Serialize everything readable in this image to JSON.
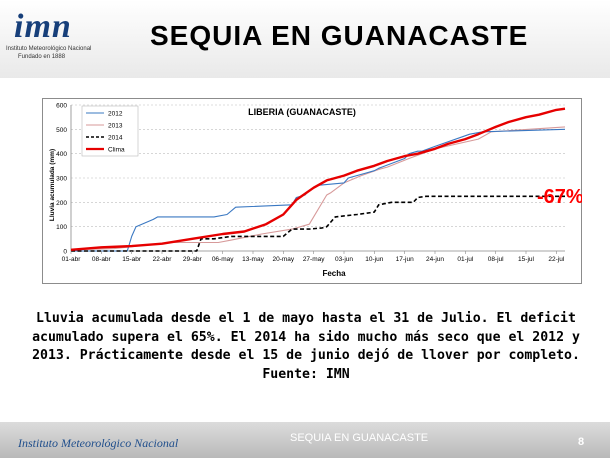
{
  "header": {
    "logo_mark": "imn",
    "logo_line1": "Instituto Meteorológico Nacional",
    "logo_line2": "Fundado en 1888",
    "title": "SEQUIA EN GUANACASTE"
  },
  "chart_data": {
    "type": "line",
    "title": "LIBERIA (GUANACASTE)",
    "xlabel": "Fecha",
    "ylabel": "Lluvia acumulada (mm)",
    "ylim": [
      0,
      600
    ],
    "yticks": [
      0,
      100,
      200,
      300,
      400,
      500,
      600
    ],
    "xtick_labels": [
      "01-abr",
      "08-abr",
      "15-abr",
      "22-abr",
      "29-abr",
      "06-may",
      "13-may",
      "20-may",
      "27-may",
      "03-jun",
      "10-jun",
      "17-jun",
      "24-jun",
      "01-jul",
      "08-jul",
      "15-jul",
      "22-jul"
    ],
    "grid": true,
    "legend_position": "top-left",
    "annotation": "-67%",
    "annotation_color": "#ff0000",
    "series": [
      {
        "name": "2012",
        "color": "#3a78c2",
        "style": "solid",
        "x": [
          0,
          13,
          14,
          15,
          19,
          20,
          33,
          36,
          38,
          51,
          52,
          54,
          55,
          57,
          63,
          64,
          68,
          70,
          71,
          74,
          77,
          78,
          80,
          81,
          84,
          92,
          95,
          114
        ],
        "y": [
          0,
          0,
          60,
          100,
          130,
          140,
          140,
          150,
          180,
          190,
          220,
          230,
          250,
          270,
          280,
          300,
          320,
          330,
          340,
          360,
          380,
          400,
          410,
          410,
          430,
          480,
          490,
          500
        ]
      },
      {
        "name": "2013",
        "color": "#d79a9a",
        "style": "solid",
        "x": [
          0,
          10,
          20,
          23,
          34,
          37,
          44,
          51,
          55,
          59,
          60,
          63,
          67,
          71,
          73,
          78,
          81,
          84,
          94,
          97,
          114
        ],
        "y": [
          5,
          10,
          30,
          35,
          35,
          45,
          70,
          90,
          110,
          230,
          240,
          280,
          310,
          335,
          345,
          380,
          400,
          420,
          460,
          490,
          510
        ]
      },
      {
        "name": "2014",
        "color": "#000000",
        "style": "dashed",
        "x": [
          0,
          29,
          30,
          33,
          37,
          49,
          51,
          55,
          58,
          59,
          61,
          66,
          70,
          71,
          74,
          79,
          80,
          82,
          94,
          101,
          114
        ],
        "y": [
          0,
          0,
          50,
          50,
          60,
          60,
          90,
          90,
          95,
          100,
          140,
          150,
          160,
          190,
          200,
          200,
          220,
          225,
          225,
          225,
          225
        ]
      },
      {
        "name": "Clima",
        "color": "#e60000",
        "style": "solid",
        "x": [
          0,
          7,
          14,
          21,
          28,
          35,
          40,
          45,
          49,
          52,
          56,
          59,
          63,
          66,
          70,
          73,
          77,
          80,
          84,
          87,
          91,
          94,
          98,
          101,
          105,
          108,
          112,
          114
        ],
        "y": [
          5,
          15,
          20,
          30,
          50,
          70,
          80,
          110,
          150,
          210,
          260,
          290,
          310,
          330,
          350,
          370,
          390,
          400,
          420,
          440,
          460,
          480,
          510,
          530,
          550,
          560,
          580,
          585
        ]
      }
    ]
  },
  "description": "Lluvia acumulada desde el 1 de mayo hasta el 31 de Julio. El deficit acumulado supera el 65%. El 2014 ha sido mucho más seco que el 2012 y 2013. Prácticamente desde el 15 de junio dejó de llover por completo. Fuente: IMN",
  "footer": {
    "org": "Instituto Meteorológico Nacional",
    "title": "SEQUIA EN GUANACASTE",
    "page": "8"
  }
}
